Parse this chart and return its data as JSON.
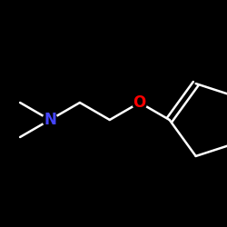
{
  "background_color": "#000000",
  "bond_color": "#ffffff",
  "N_color": "#4444ff",
  "O_color": "#ff0000",
  "bond_width": 1.8,
  "fig_size": [
    2.5,
    2.5
  ],
  "dpi": 100,
  "font_size_atom": 12
}
